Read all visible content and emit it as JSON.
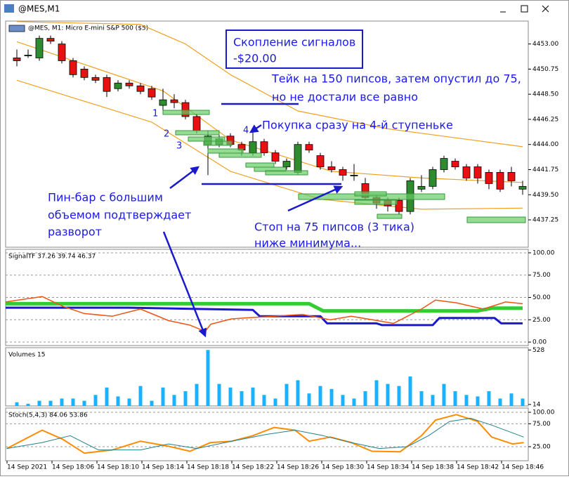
{
  "window": {
    "title": "@MES,M1"
  },
  "chart_data": [
    {
      "type": "candlestick",
      "title": "@MES, M1:  Micro E-mini S&P 500 ($5)",
      "categories": [
        "14 Sep 2021",
        null,
        null,
        null,
        "14 Sep 18:06",
        null,
        null,
        null,
        "14 Sep 18:10",
        null,
        null,
        null,
        "14 Sep 18:14",
        null,
        null,
        null,
        "14 Sep 18:18",
        null,
        null,
        null,
        "14 Sep 18:22",
        null,
        null,
        null,
        "14 Sep 18:26",
        null,
        null,
        null,
        "14 Sep 18:30",
        null,
        null,
        null,
        "14 Sep 18:34",
        null,
        null,
        null,
        "14 Sep 18:38",
        null,
        null,
        null,
        "14 Sep 18:42",
        null,
        null,
        null,
        "14 Sep 18:46",
        null
      ],
      "open": [
        4451.75,
        4452.0,
        4451.75,
        4453.5,
        4453.0,
        4451.5,
        4450.75,
        4450.0,
        4450.0,
        4449.0,
        4449.5,
        4449.25,
        4449.0,
        4447.5,
        4448.0,
        4447.75,
        4446.5,
        4444.0,
        4444.0,
        4444.75,
        4444.0,
        4443.25,
        4444.25,
        4443.25,
        4442.0,
        4441.5,
        4444.0,
        4443.0,
        4442.0,
        4441.75,
        4441.25,
        4440.5,
        4439.25,
        4439.0,
        4439.0,
        4438.0,
        4440.0,
        4440.25,
        4441.75,
        4442.5,
        4442.0,
        4442.0,
        4441.5,
        4441.5,
        4441.5,
        4440.0
      ],
      "high": [
        4452.5,
        4452.5,
        4453.75,
        4453.75,
        4453.25,
        4451.75,
        4451.0,
        4450.25,
        4450.25,
        4449.75,
        4449.75,
        4449.5,
        4449.25,
        4449.0,
        4448.5,
        4448.0,
        4446.75,
        4445.25,
        4445.0,
        4445.0,
        4444.25,
        4445.25,
        4444.5,
        4443.5,
        4442.75,
        4444.25,
        4444.25,
        4443.25,
        4442.5,
        4442.0,
        4442.25,
        4441.0,
        4439.5,
        4439.25,
        4439.25,
        4441.0,
        4441.25,
        4442.0,
        4443.0,
        4442.75,
        4442.25,
        4442.25,
        4441.75,
        4441.75,
        4442.0,
        4440.75
      ],
      "low": [
        4451.0,
        4451.75,
        4451.5,
        4453.0,
        4451.25,
        4450.0,
        4449.75,
        4449.5,
        4448.25,
        4448.75,
        4449.0,
        4448.5,
        4448.0,
        4447.0,
        4447.25,
        4446.25,
        4445.0,
        4441.25,
        4443.75,
        4443.75,
        4443.0,
        4443.0,
        4443.0,
        4442.25,
        4441.75,
        4441.25,
        4443.25,
        4441.75,
        4441.5,
        4440.75,
        4440.75,
        4439.0,
        4438.25,
        4438.0,
        4437.75,
        4437.75,
        4439.75,
        4440.0,
        4441.5,
        4441.75,
        4440.75,
        4440.5,
        4440.0,
        4439.75,
        4440.25,
        4439.5
      ],
      "close": [
        4451.5,
        4452.0,
        4453.5,
        4453.25,
        4451.5,
        4450.25,
        4450.0,
        4449.75,
        4448.75,
        4449.5,
        4449.25,
        4448.75,
        4448.25,
        4448.0,
        4447.75,
        4446.5,
        4445.25,
        4444.75,
        4444.5,
        4444.0,
        4443.5,
        4444.25,
        4443.25,
        4442.5,
        4442.5,
        4444.0,
        4443.5,
        4442.0,
        4441.75,
        4441.25,
        4441.25,
        4439.25,
        4438.75,
        4438.5,
        4438.0,
        4440.75,
        4440.25,
        4441.75,
        4442.75,
        4442.0,
        4441.0,
        4441.0,
        4440.5,
        4440.0,
        4440.75,
        4440.25
      ],
      "up_color": "#2e8b2e",
      "down_color": "#e81010",
      "bands": [
        {
          "color": "#f0a020",
          "x": [
            0,
            11,
            15,
            19,
            25,
            33,
            45
          ],
          "values": [
            4455.0,
            4454.75,
            4453.0,
            4450.25,
            4447.0,
            4445.4,
            4443.8
          ]
        },
        {
          "color": "#f0a020",
          "x": [
            0,
            13,
            19,
            28,
            36,
            45
          ],
          "values": [
            4453.2,
            4448.8,
            4444.4,
            4441.6,
            4441.0,
            4440.6
          ]
        },
        {
          "color": "#f0a020",
          "x": [
            0,
            12,
            19,
            27,
            36,
            45
          ],
          "values": [
            4449.75,
            4446.0,
            4441.6,
            4439.1,
            4438.2,
            4438.3
          ]
        }
      ],
      "ylim": [
        4434.8,
        4455.05
      ],
      "yticks": [
        {
          "value": 4453,
          "label": "4453.00"
        },
        {
          "value": 4450.75,
          "label": "4450.75"
        },
        {
          "value": 4448.5,
          "label": "4448.50"
        },
        {
          "value": 4446.25,
          "label": "4446.25"
        },
        {
          "value": 4444,
          "label": "4444.00"
        },
        {
          "value": 4441.75,
          "label": "4441.75"
        },
        {
          "value": 4439.5,
          "label": "4439.50"
        },
        {
          "value": 4437.25,
          "label": "4437.25"
        }
      ],
      "annotations": [
        "Скопление сигналов",
        "-$20.00",
        "Тейк на 150 пипсов, затем опустил до 75,",
        "но не достали все равно",
        "Покупка сразу на 4-й ступеньке",
        "Пин-бар с большим",
        "объемом подтверждает",
        "разворот",
        "Стоп на 75 пипсов (3 тика)",
        "ниже минимума...",
        "1",
        "2",
        "3",
        "4"
      ]
    },
    {
      "type": "line",
      "title": "SignalTF 37.26 39.74 46.37",
      "series": [
        {
          "color": "#33cc33",
          "width": 5,
          "x": [
            -1,
            11,
            26,
            27.25,
            36,
            41,
            42.25,
            45
          ],
          "values": [
            43,
            43,
            43,
            35,
            35,
            35,
            38,
            38
          ]
        },
        {
          "color": "#1a1acc",
          "width": 3,
          "x": [
            -1,
            10,
            21,
            21.6,
            27,
            27.6,
            32,
            32.5,
            37,
            37.6,
            42.5,
            43.1,
            45
          ],
          "values": [
            38.5,
            38.5,
            36,
            29,
            29,
            21,
            21,
            19,
            19,
            27,
            27,
            21,
            21
          ]
        },
        {
          "color": "#ee5511",
          "width": 1.5,
          "x": [
            -1,
            2.25,
            4.1,
            6,
            8.5,
            11,
            13.5,
            15.4,
            16.75,
            17.25,
            19.1,
            20.25,
            22.9,
            25.4,
            27.9,
            29.75,
            33.5,
            36,
            37.25,
            39.1,
            41.5,
            43.5,
            45
          ],
          "values": [
            45,
            51,
            40,
            32,
            29,
            37,
            24,
            19,
            12,
            20,
            26,
            27,
            29,
            31,
            25,
            29,
            21,
            37,
            47,
            44,
            37,
            45,
            43
          ]
        }
      ],
      "ylim": [
        -3.9,
        103.9
      ],
      "yticks": [
        {
          "value": 100,
          "label": "100.00"
        },
        {
          "value": 75,
          "label": "75.00"
        },
        {
          "value": 50,
          "label": "50.00"
        },
        {
          "value": 25,
          "label": "25.00"
        },
        {
          "value": 0,
          "label": "0.00"
        }
      ],
      "grid": true
    },
    {
      "type": "bar",
      "title": "Volumes 15",
      "color": "#1ab2ff",
      "values": [
        35,
        21,
        49,
        49,
        70,
        70,
        49,
        104,
        174,
        90,
        70,
        188,
        49,
        174,
        104,
        139,
        208,
        528,
        208,
        174,
        139,
        174,
        104,
        70,
        208,
        243,
        118,
        188,
        160,
        104,
        70,
        139,
        243,
        208,
        188,
        278,
        139,
        104,
        208,
        139,
        104,
        90,
        139,
        70,
        118,
        70
      ],
      "ylim": [
        0,
        550
      ],
      "yticks": [
        528,
        14
      ]
    },
    {
      "type": "line",
      "title": "Stoch(5,4,3) 84.06 53.86",
      "series": [
        {
          "color": "#ff8c00",
          "width": 2,
          "x": [
            -0.9,
            2.25,
            4.1,
            6,
            8.5,
            11,
            13.5,
            15.4,
            17.25,
            19.1,
            21,
            22.9,
            24.75,
            26,
            27.9,
            29.75,
            31.6,
            34.1,
            36,
            37.25,
            39.1,
            41,
            42.25,
            44.1,
            45.1
          ],
          "values": [
            21,
            61,
            41,
            11,
            18,
            37,
            26,
            15,
            34,
            37,
            49,
            67,
            61,
            37,
            46,
            34,
            15,
            14,
            49,
            83,
            95,
            80,
            46,
            31,
            34
          ]
        },
        {
          "color": "#20808a",
          "width": 1,
          "x": [
            -0.9,
            2.25,
            4.75,
            7.25,
            11,
            13.5,
            16,
            19.1,
            22.25,
            24.75,
            27.25,
            29.75,
            32.25,
            34.75,
            36.625,
            38.5,
            40.375,
            42.25,
            45.1
          ],
          "values": [
            21,
            34,
            49,
            18,
            18,
            31,
            21,
            37,
            52,
            61,
            49,
            34,
            21,
            25,
            49,
            80,
            87,
            72,
            46
          ]
        }
      ],
      "ylim": [
        -5.6,
        109.2
      ],
      "yticks": [
        {
          "value": 100,
          "label": "100.00"
        },
        {
          "value": 75,
          "label": "75.00"
        },
        {
          "value": 25,
          "label": "25.00"
        }
      ],
      "grid": true
    }
  ]
}
